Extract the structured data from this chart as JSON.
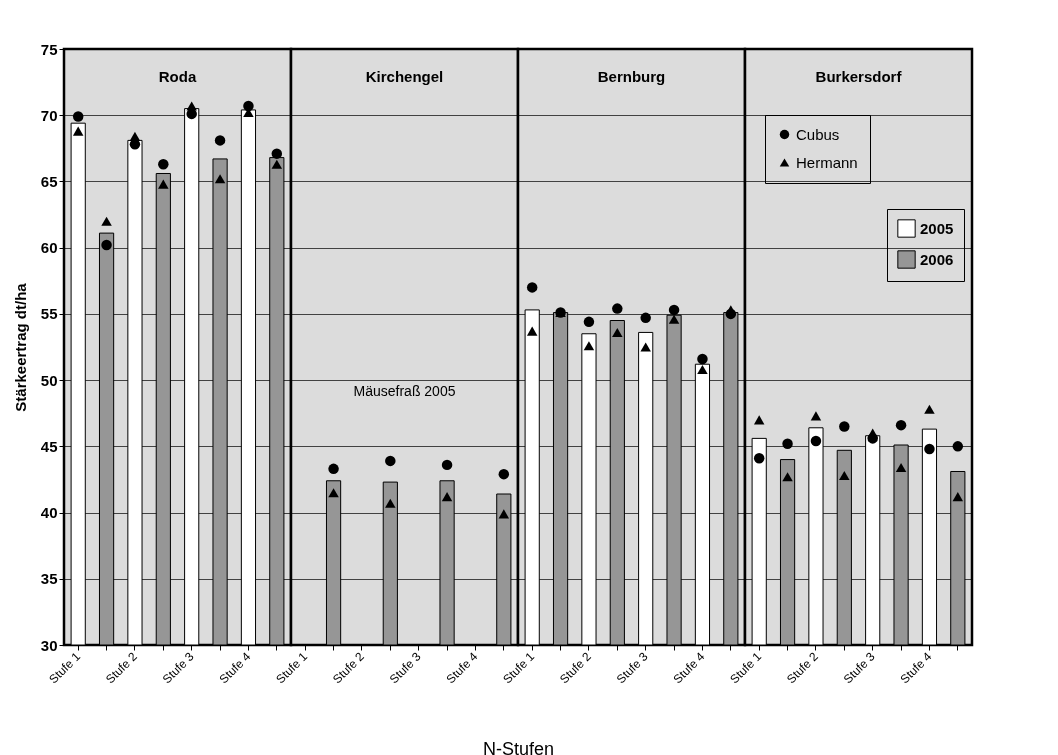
{
  "chart_data": [
    {
      "type": "bar",
      "title": "Roda",
      "ylabel": "Stärkeertrag dt/ha",
      "categories": [
        "Stufe 1",
        null,
        "Stufe 2",
        null,
        "Stufe 3",
        null,
        "Stufe 4",
        null
      ],
      "ylim": [
        30,
        75
      ],
      "yticks": [
        30,
        35,
        40,
        45,
        50,
        55,
        60,
        65,
        70,
        75
      ],
      "grid": "y",
      "series": [
        {
          "color": "#ffffff",
          "values": [
            69.4,
            null,
            68.1,
            null,
            70.5,
            null,
            70.4,
            null
          ]
        },
        {
          "color": "#969696",
          "values": [
            null,
            61.1,
            null,
            65.6,
            null,
            66.7,
            null,
            66.8
          ]
        },
        {
          "type": "scatter",
          "marker": "circle",
          "color": "#000000",
          "values": [
            69.9,
            60.2,
            67.8,
            66.3,
            70.1,
            68.1,
            70.7,
            67.1
          ]
        },
        {
          "type": "scatter",
          "marker": "triangle",
          "color": "#000000",
          "values": [
            68.8,
            62.0,
            68.4,
            64.8,
            70.7,
            65.2,
            70.2,
            66.3
          ]
        }
      ]
    },
    {
      "type": "bar",
      "title": "Kirchengel",
      "xlabel": "N-Stufen",
      "annotations": [
        "Mäusefraß 2005"
      ],
      "categories": [
        "Stufe 1",
        null,
        "Stufe 2",
        null,
        "Stufe 3",
        null,
        "Stufe 4",
        null
      ],
      "ylim": [
        30,
        75
      ],
      "yticks": [
        30,
        35,
        40,
        45,
        50,
        55,
        60,
        65,
        70,
        75
      ],
      "grid": "y",
      "tick_labels": "x",
      "series": [
        {
          "color": "#ffffff",
          "values": [
            null,
            null,
            null,
            null,
            null,
            null,
            null,
            null
          ]
        },
        {
          "color": "#969696",
          "values": [
            null,
            42.4,
            null,
            42.3,
            null,
            42.4,
            null,
            41.4
          ]
        },
        {
          "type": "scatter",
          "marker": "circle",
          "color": "#000000",
          "values": [
            null,
            43.3,
            null,
            43.9,
            null,
            43.6,
            null,
            42.9
          ]
        },
        {
          "type": "scatter",
          "marker": "triangle",
          "color": "#000000",
          "values": [
            null,
            41.5,
            null,
            40.7,
            null,
            41.2,
            null,
            39.9
          ]
        }
      ]
    },
    {
      "type": "bar",
      "title": "Bernburg",
      "categories": [
        "Stufe 1",
        null,
        "Stufe 2",
        null,
        "Stufe 3",
        null,
        "Stufe 4",
        null
      ],
      "ylim": [
        30,
        75
      ],
      "yticks": [
        30,
        35,
        40,
        45,
        50,
        55,
        60,
        65,
        70,
        75
      ],
      "grid": "y",
      "tick_labels": "x",
      "series": [
        {
          "color": "#ffffff",
          "values": [
            55.3,
            null,
            53.5,
            null,
            53.6,
            null,
            51.2,
            null
          ]
        },
        {
          "color": "#969696",
          "values": [
            null,
            55.1,
            null,
            54.5,
            null,
            54.9,
            null,
            55.1
          ]
        },
        {
          "type": "scatter",
          "marker": "circle",
          "color": "#000000",
          "values": [
            57.0,
            55.1,
            54.4,
            55.4,
            54.7,
            55.3,
            51.6,
            55.0
          ]
        },
        {
          "type": "scatter",
          "marker": "triangle",
          "color": "#000000",
          "values": [
            53.7,
            55.1,
            52.6,
            53.6,
            52.5,
            54.6,
            50.8,
            55.3
          ]
        }
      ]
    },
    {
      "type": "bar",
      "title": "Burkersdorf",
      "categories": [
        "Stufe 1",
        null,
        "Stufe 2",
        null,
        "Stufe 3",
        null,
        "Stufe 4",
        null
      ],
      "ylim": [
        30,
        75
      ],
      "yticks": [
        30,
        35,
        40,
        45,
        50,
        55,
        60,
        65,
        70,
        75
      ],
      "grid": "y",
      "tick_labels": "x",
      "legend": "top right",
      "series": [
        {
          "name": "2005",
          "color": "#ffffff",
          "values": [
            45.6,
            null,
            46.4,
            null,
            45.8,
            null,
            46.3,
            null
          ]
        },
        {
          "name": "2006",
          "color": "#969696",
          "values": [
            null,
            44.0,
            null,
            44.7,
            null,
            45.1,
            null,
            43.1
          ]
        },
        {
          "name": "Cubus",
          "type": "scatter",
          "marker": "circle",
          "color": "#000000",
          "values": [
            44.1,
            45.2,
            45.4,
            46.5,
            45.6,
            46.6,
            44.8,
            45.0
          ]
        },
        {
          "name": "Hermann",
          "type": "scatter",
          "marker": "triangle",
          "color": "#000000",
          "values": [
            47.0,
            42.7,
            47.3,
            42.8,
            46.0,
            43.4,
            47.8,
            41.2
          ]
        }
      ]
    }
  ]
}
